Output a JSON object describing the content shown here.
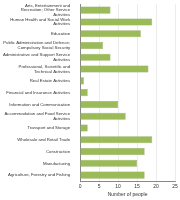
{
  "chart_data": {
    "type": "bar",
    "orientation": "horizontal",
    "x_label": "Number of people",
    "categories": [
      "Arts, Entertainment and Recreation; Other Service Activities",
      "Human Health and Social Work Activities",
      "Education",
      "Public Administration and Defence; Compulsory Social Security",
      "Administrative and Support Service Activities",
      "Professional, Scientific and Technical Activities",
      "Real Estate Activities",
      "Financial and Insurance Activities",
      "Information and Communication",
      "Accommodation and Food Service Activities",
      "Transport and Storage",
      "Wholesale and Retail Trade",
      "Construction",
      "Manufacturing",
      "Agriculture, Forestry and Fishing"
    ],
    "values": [
      8,
      19,
      16,
      6,
      8,
      18,
      1,
      2,
      10,
      12,
      2,
      19,
      17,
      15,
      17
    ],
    "color": "#9bbb59",
    "xlim": [
      0,
      25
    ],
    "xticks": [
      0,
      5,
      10,
      15,
      20,
      25
    ],
    "grid": true
  }
}
